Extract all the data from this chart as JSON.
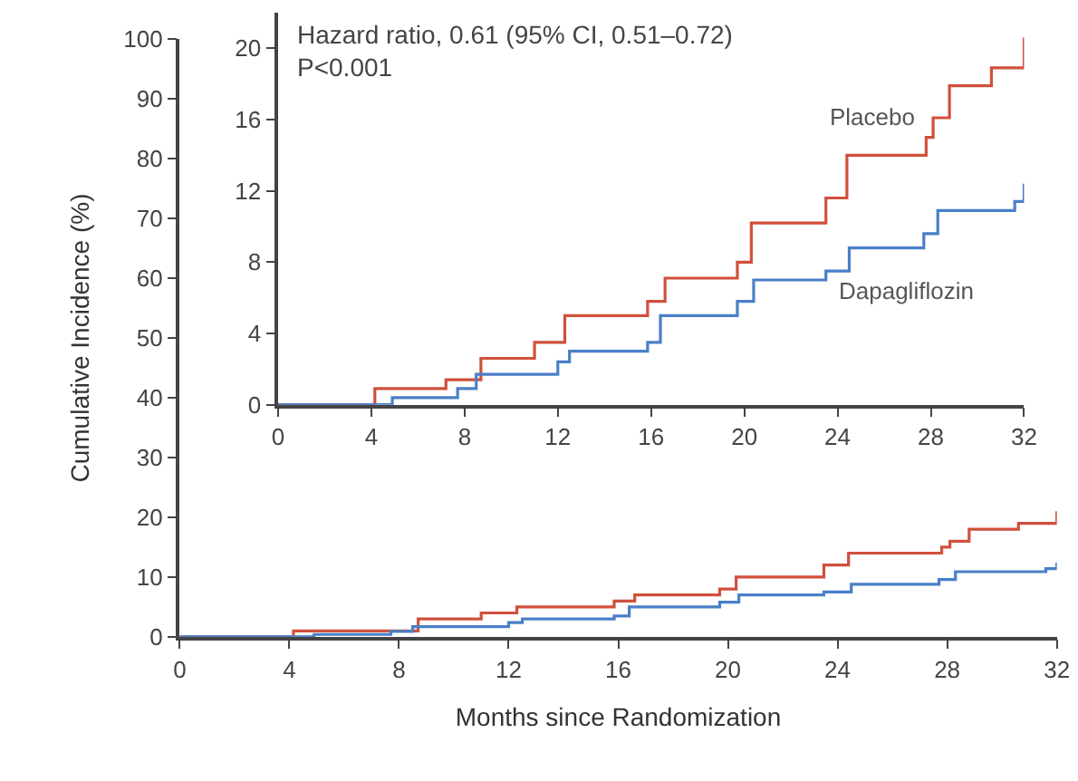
{
  "chart_data": [
    {
      "type": "step",
      "xlabel": "Months since Randomization",
      "ylabel": "Cumulative Incidence (%)",
      "xlim": [
        0,
        32
      ],
      "ylim": [
        0,
        100
      ],
      "xticks": [
        0,
        4,
        8,
        12,
        16,
        20,
        24,
        28,
        32
      ],
      "yticks": [
        0,
        10,
        20,
        30,
        40,
        50,
        60,
        70,
        80,
        90,
        100
      ],
      "series": [
        {
          "color": "#d0503c",
          "x": [
            0,
            4.15,
            7.2,
            8.7,
            11.0,
            12.3,
            15.85,
            16.6,
            19.7,
            20.3,
            23.5,
            24.4,
            27.8,
            28.1,
            28.8,
            30.6,
            31.6,
            32
          ],
          "values": [
            0,
            1,
            1,
            3,
            4,
            5,
            6,
            7,
            8,
            10,
            12,
            14,
            15,
            16,
            18,
            19,
            19,
            21
          ]
        },
        {
          "color": "#4a7fc8",
          "x": [
            0,
            4.9,
            7.7,
            8.5,
            12.0,
            12.5,
            15.85,
            16.4,
            19.7,
            20.4,
            23.5,
            24.5,
            27.7,
            28.3,
            31.6,
            32
          ],
          "values": [
            0,
            0.4,
            0.9,
            1.7,
            2.4,
            3.0,
            3.5,
            5.0,
            5.8,
            7.0,
            7.5,
            8.8,
            9.6,
            10.9,
            11.4,
            12.4
          ]
        }
      ]
    },
    {
      "type": "step",
      "xlim": [
        0,
        32
      ],
      "ylim": [
        0,
        22
      ],
      "xticks": [
        0,
        4,
        8,
        12,
        16,
        20,
        24,
        28,
        32
      ],
      "yticks": [
        0,
        4,
        8,
        12,
        16,
        20
      ],
      "annotations": [
        "Hazard ratio, 0.61 (95% CI, 0.51–0.72)\nP<0.001"
      ],
      "series": [
        {
          "name": "Placebo",
          "color": "#d0503c",
          "x": [
            0,
            4.15,
            7.2,
            8.7,
            11.0,
            12.3,
            15.85,
            16.6,
            19.7,
            20.3,
            23.5,
            24.4,
            27.8,
            28.1,
            28.8,
            30.6,
            31.6,
            32
          ],
          "values": [
            0,
            0.9,
            1.4,
            2.6,
            3.5,
            5.0,
            5.8,
            7.1,
            8.0,
            10.2,
            11.6,
            14.0,
            15.0,
            16.1,
            17.9,
            18.9,
            18.9,
            20.6
          ]
        },
        {
          "name": "Dapagliflozin",
          "color": "#4a7fc8",
          "x": [
            0,
            4.9,
            7.7,
            8.5,
            12.0,
            12.5,
            15.85,
            16.4,
            19.7,
            20.4,
            23.5,
            24.5,
            27.7,
            28.3,
            31.6,
            32
          ],
          "values": [
            0,
            0.4,
            0.9,
            1.7,
            2.4,
            3.0,
            3.5,
            5.0,
            5.8,
            7.0,
            7.5,
            8.8,
            9.6,
            10.9,
            11.4,
            12.4
          ]
        }
      ]
    }
  ]
}
